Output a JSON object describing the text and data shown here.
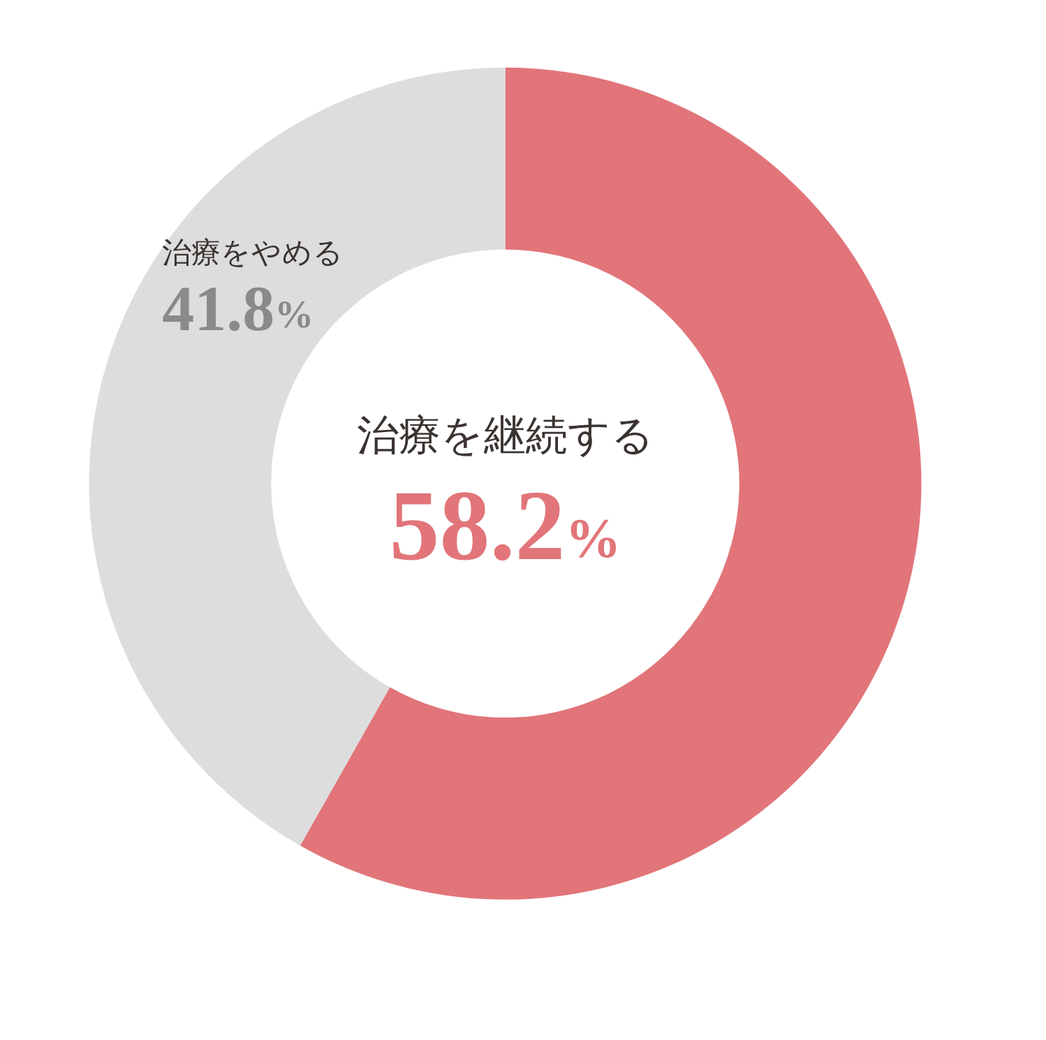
{
  "chart_data": {
    "type": "donut",
    "categories": [
      "治療を継続する",
      "治療をやめる"
    ],
    "values": [
      58.2,
      41.8
    ],
    "colors": [
      "#e1757a",
      "#dddddd"
    ],
    "value_labels": [
      "58.2%",
      "41.8%"
    ],
    "legend": false
  }
}
